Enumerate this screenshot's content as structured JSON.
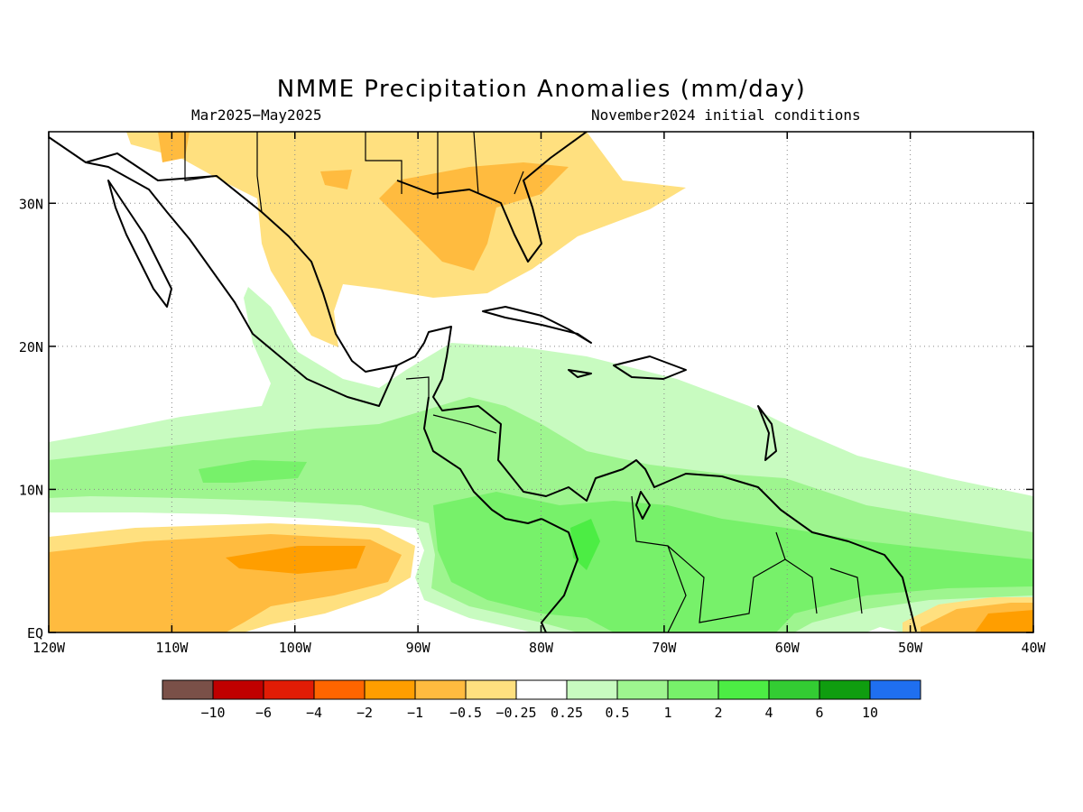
{
  "title": "NMME Precipitation Anomalies (mm/day)",
  "period": "Mar2025−May2025",
  "init": "November2024 initial conditions",
  "map": {
    "lon_range": [
      -120,
      -40
    ],
    "lat_range": [
      0,
      35
    ],
    "lon_ticks": [
      {
        "lon": -120,
        "label": "120W"
      },
      {
        "lon": -110,
        "label": "110W"
      },
      {
        "lon": -100,
        "label": "100W"
      },
      {
        "lon": -90,
        "label": "90W"
      },
      {
        "lon": -80,
        "label": "80W"
      },
      {
        "lon": -70,
        "label": "70W"
      },
      {
        "lon": -60,
        "label": "60W"
      },
      {
        "lon": -50,
        "label": "50W"
      },
      {
        "lon": -40,
        "label": "40W"
      }
    ],
    "lat_ticks": [
      {
        "lat": 0,
        "label": "EQ"
      },
      {
        "lat": 10,
        "label": "10N"
      },
      {
        "lat": 20,
        "label": "20N"
      },
      {
        "lat": 30,
        "label": "30N"
      }
    ],
    "grid": true
  },
  "colorbar": {
    "colors": [
      "#7a5048",
      "#c00000",
      "#e11c05",
      "#ff6500",
      "#ff9e00",
      "#ffbb3f",
      "#ffe07f",
      "#ffffff",
      "#c8fbc0",
      "#9ef58f",
      "#77f16a",
      "#4ced44",
      "#33cc33",
      "#0f9d0f",
      "#1f6ff0"
    ],
    "labels": [
      "−10",
      "−6",
      "−4",
      "−2",
      "−1",
      "−0.5",
      "−0.25",
      "0.25",
      "0.5",
      "1",
      "2",
      "4",
      "6",
      "10"
    ]
  }
}
